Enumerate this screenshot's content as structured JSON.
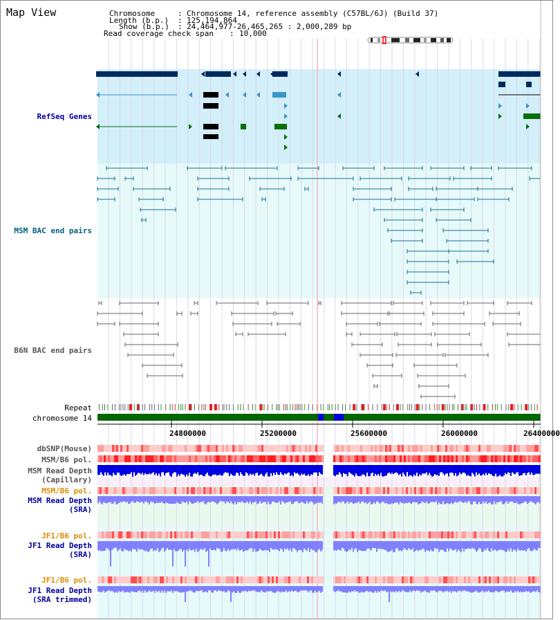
{
  "view_title": "Map View",
  "header": {
    "chromosome_key": "Chromosome",
    "chromosome_val": "Chromosome 14, reference assembly (C57BL/6J) (Build 37)",
    "length_key": "Length (b.p.)",
    "length_val": "125,194,864",
    "show_key": "Show (b.p.)",
    "show_val": "24,464,977-26,465,265 : 2,000,289 bp",
    "coverage_key": "Read coverage check span",
    "coverage_val": "10,000"
  },
  "tracks": {
    "refseq": "RefSeq Genes",
    "msm_bac": "MSM BAC end pairs",
    "b6n_bac": "B6N BAC end pairs",
    "repeat": "Repeat",
    "chromosome": "chromosome 14",
    "dbsnp": "dbSNP(Mouse)",
    "msm_b6_pol_1": "MSM/B6 pol.",
    "msm_depth_cap_1": "MSM Read Depth",
    "msm_depth_cap_2": "(Capillary)",
    "msm_b6_pol_2": "MSM/B6 pol.",
    "msm_depth_sra_1": "MSM Read Depth",
    "msm_depth_sra_2": "(SRA)",
    "jf1_pol_1": "JF1/B6 pol.",
    "jf1_depth_sra_1": "JF1 Read Depth",
    "jf1_depth_sra_2": "(SRA)",
    "jf1_pol_2": "JF1/B6 pol.",
    "jf1_depth_trim_1": "JF1 Read Depth",
    "jf1_depth_trim_2": "(SRA trimmed)"
  },
  "axis": {
    "ticks": [
      "24800000",
      "25200000",
      "25600000",
      "26000000",
      "26400000"
    ]
  },
  "colors": {
    "refseq_bg": "#d2effa",
    "bac_bg": "#e6fafa",
    "gene_dark": "#002a5e",
    "gene_light": "#3a95c8",
    "gene_green": "#0a6e0a",
    "bac_line": "#1a6e8c",
    "b6n_line": "#666666",
    "chrom_green": "#006600",
    "depth_blue": "#0000e0",
    "depth_light": "#8080ff",
    "pol_red": "#ff3030",
    "label_orange": "#e08a00",
    "label_navy": "#000099",
    "label_teal": "#006080"
  }
}
